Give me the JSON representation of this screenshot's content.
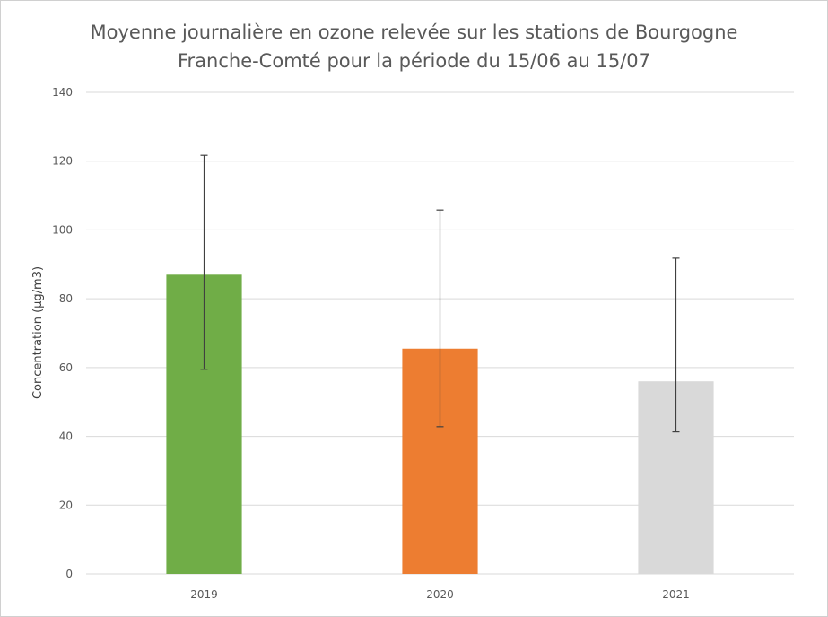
{
  "chart_data": {
    "type": "bar",
    "title_line1": "Moyenne journalière en ozone relevée sur les stations de Bourgogne",
    "title_line2": "Franche-Comté pour la période du 15/06 au 15/07",
    "xlabel": "",
    "ylabel": "Concentration (µg/m3)",
    "ylim": [
      0,
      140
    ],
    "yticks": [
      0,
      20,
      40,
      60,
      80,
      100,
      120,
      140
    ],
    "grid": true,
    "legend": "none",
    "categories": [
      "2019",
      "2020",
      "2021"
    ],
    "values": [
      87,
      65.5,
      56
    ],
    "error_low": [
      59.5,
      42.8,
      41.3
    ],
    "error_high": [
      121.7,
      105.8,
      91.8
    ],
    "colors": [
      "#70ad47",
      "#ed7d31",
      "#d9d9d9"
    ],
    "error_color": "#404040",
    "grid_color": "#d9d9d9"
  }
}
